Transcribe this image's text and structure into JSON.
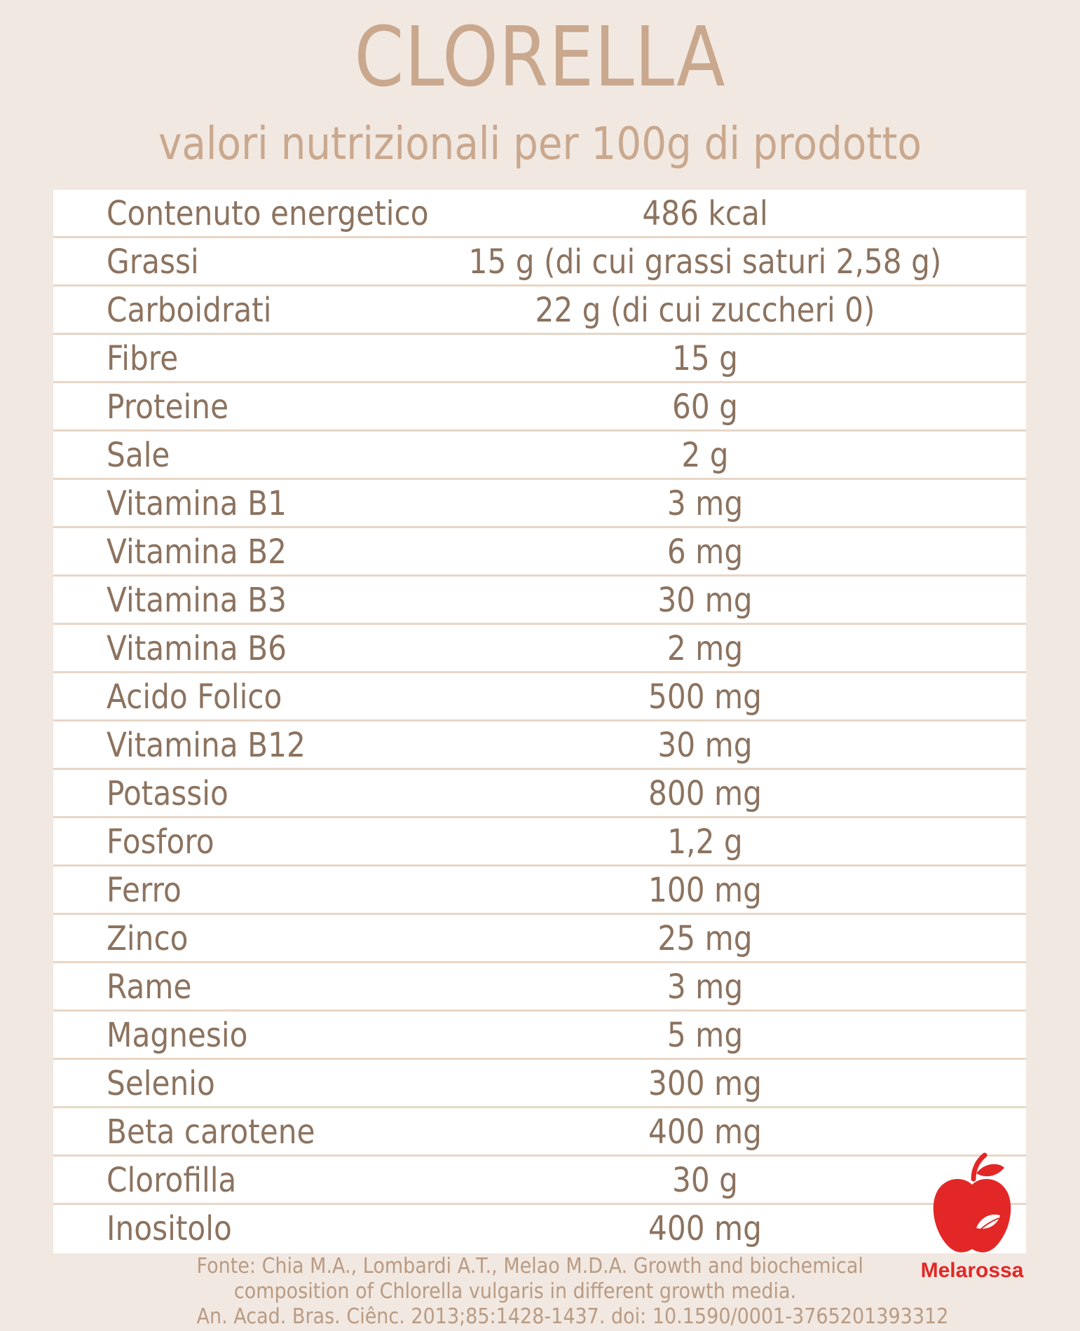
{
  "header": {
    "title": "CLORELLA",
    "subtitle": "valori nutrizionali per 100g di prodotto"
  },
  "table": {
    "rows": [
      {
        "name": "Contenuto energetico",
        "value": "486 kcal"
      },
      {
        "name": "Grassi",
        "value": "15 g (di cui grassi saturi 2,58 g)"
      },
      {
        "name": "Carboidrati",
        "value": "22 g (di cui zuccheri 0)"
      },
      {
        "name": "Fibre",
        "value": "15 g"
      },
      {
        "name": "Proteine",
        "value": "60 g"
      },
      {
        "name": "Sale",
        "value": "2 g"
      },
      {
        "name": "Vitamina B1",
        "value": "3 mg"
      },
      {
        "name": "Vitamina B2",
        "value": "6 mg"
      },
      {
        "name": "Vitamina B3",
        "value": "30 mg"
      },
      {
        "name": "Vitamina B6",
        "value": "2 mg"
      },
      {
        "name": "Acido Folico",
        "value": "500 mg"
      },
      {
        "name": "Vitamina B12",
        "value": "30 mg"
      },
      {
        "name": "Potassio",
        "value": "800 mg"
      },
      {
        "name": "Fosforo",
        "value": "1,2 g"
      },
      {
        "name": "Ferro",
        "value": "100 mg"
      },
      {
        "name": "Zinco",
        "value": "25 mg"
      },
      {
        "name": "Rame",
        "value": "3 mg"
      },
      {
        "name": "Magnesio",
        "value": "5 mg"
      },
      {
        "name": "Selenio",
        "value": "300 mg"
      },
      {
        "name": "Beta carotene",
        "value": "400 mg"
      },
      {
        "name": "Clorofilla",
        "value": "30 g"
      },
      {
        "name": "Inositolo",
        "value": "400 mg"
      }
    ]
  },
  "source": {
    "line1": "Fonte: Chia M.A., Lombardi A.T., Melao M.D.A. Growth and biochemical",
    "line2": "composition of Chlorella vulgaris in different growth media.",
    "line3": "An. Acad. Bras. Ciênc. 2013;85:1428-1437. doi: 10.1590/0001-3765201393312"
  },
  "logo": {
    "text": "Melarossa",
    "icon": "apple-icon",
    "color": "#e32726"
  },
  "colors": {
    "background": "#f1e8e1",
    "heading": "#c9a88e",
    "table_text": "#8c735f",
    "row_divider": "#e8d6c6"
  }
}
